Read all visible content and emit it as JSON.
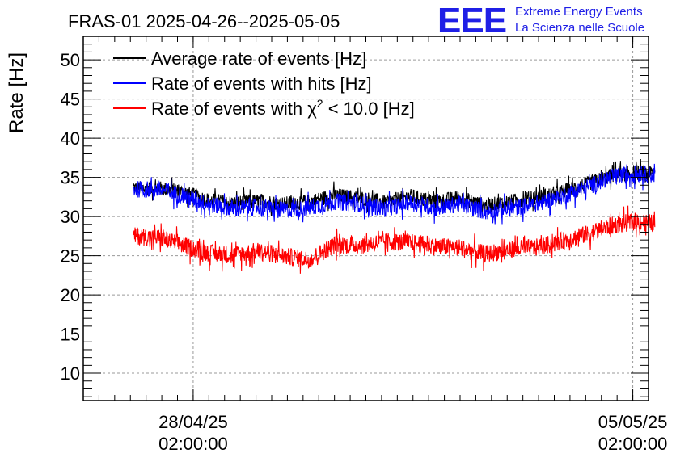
{
  "header": {
    "title": "FRAS-01 2025-04-26--2025-05-05",
    "logo_mark": "EEE",
    "logo_line1": "Extreme Energy Events",
    "logo_line2": "La Scienza nelle Scuole"
  },
  "chart_data": {
    "type": "line",
    "title": "FRAS-01 2025-04-26--2025-05-05",
    "xlabel": "",
    "ylabel": "Rate [Hz]",
    "ylim": [
      6.5,
      53
    ],
    "yticks": [
      10,
      15,
      20,
      25,
      30,
      35,
      40,
      45,
      50
    ],
    "xlim_days": [
      0,
      9.0
    ],
    "xticks": [
      {
        "day": 1.75,
        "date": "28/04/25",
        "time": "02:00:00"
      },
      {
        "day": 8.75,
        "date": "05/05/25",
        "time": "02:00:00"
      }
    ],
    "grid": true,
    "legend_position": "top-left",
    "x_day": [
      0.8,
      1.2,
      1.6,
      2.0,
      2.4,
      2.8,
      3.2,
      3.6,
      4.0,
      4.4,
      4.8,
      5.2,
      5.6,
      6.0,
      6.4,
      6.8,
      7.2,
      7.6,
      8.0,
      8.4,
      8.8,
      9.1
    ],
    "series": [
      {
        "name": "Average rate of events [Hz]",
        "color": "#000000",
        "values": [
          33.6,
          33.6,
          33.1,
          32.1,
          31.7,
          32.0,
          31.6,
          31.9,
          32.7,
          32.4,
          31.8,
          32.6,
          31.9,
          32.4,
          31.4,
          31.9,
          32.4,
          33.1,
          34.1,
          35.2,
          35.6,
          35.5
        ]
      },
      {
        "name": "Rate of events with hits [Hz]",
        "color": "#0000ff",
        "values": [
          33.5,
          33.4,
          32.7,
          31.5,
          31.0,
          31.2,
          30.8,
          31.1,
          31.9,
          31.6,
          31.0,
          31.8,
          31.1,
          31.6,
          30.6,
          31.0,
          31.6,
          32.5,
          33.7,
          35.0,
          35.5,
          35.3
        ]
      },
      {
        "name": "Rate of events with χ² < 10.0 [Hz]",
        "legend_prefix": "Rate of events with ",
        "legend_chi": "χ",
        "legend_sup": "2",
        "legend_suffix": " < 10.0 [Hz]",
        "color": "#ff0000",
        "values": [
          27.5,
          27.3,
          26.3,
          25.3,
          25.1,
          25.6,
          24.9,
          24.5,
          26.4,
          26.3,
          26.8,
          26.7,
          26.2,
          26.0,
          25.2,
          25.8,
          26.0,
          26.8,
          27.7,
          28.8,
          29.4,
          29.1
        ]
      }
    ]
  }
}
